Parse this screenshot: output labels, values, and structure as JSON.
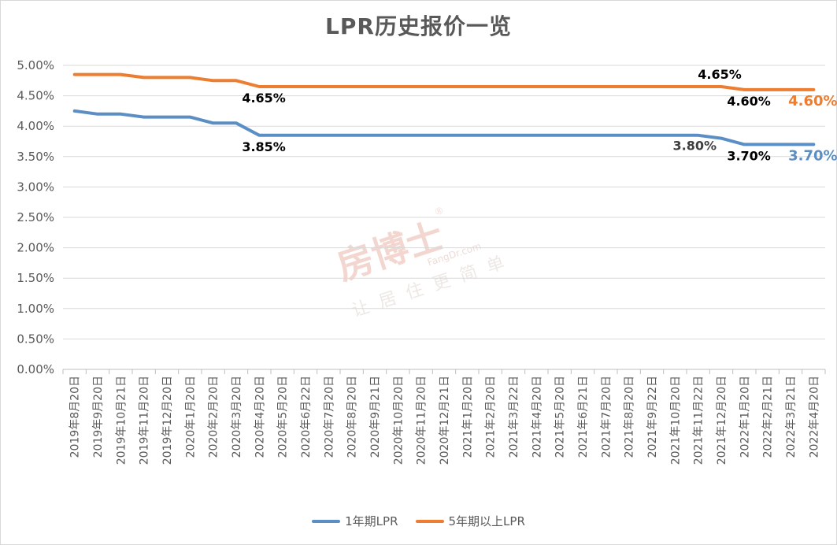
{
  "chart_data": {
    "type": "line",
    "title": "LPR历史报价一览",
    "x": [
      "2019年8月20日",
      "2019年9月20日",
      "2019年10月21日",
      "2019年11月20日",
      "2019年12月20日",
      "2020年1月20日",
      "2020年2月20日",
      "2020年3月20日",
      "2020年4月20日",
      "2020年5月20日",
      "2020年6月22日",
      "2020年7月20日",
      "2020年8月20日",
      "2020年9月21日",
      "2020年10月20日",
      "2020年11月20日",
      "2020年12月21日",
      "2021年1月20日",
      "2021年2月20日",
      "2021年3月22日",
      "2021年4月20日",
      "2021年5月20日",
      "2021年6月21日",
      "2021年7月20日",
      "2021年8月20日",
      "2021年9月22日",
      "2021年10月20日",
      "2021年11月22日",
      "2021年12月20日",
      "2022年1月20日",
      "2022年2月21日",
      "2022年3月21日",
      "2022年4月20日"
    ],
    "series": [
      {
        "name": "1年期LPR",
        "color": "#5b8ec4",
        "values": [
          4.25,
          4.2,
          4.2,
          4.15,
          4.15,
          4.15,
          4.05,
          4.05,
          3.85,
          3.85,
          3.85,
          3.85,
          3.85,
          3.85,
          3.85,
          3.85,
          3.85,
          3.85,
          3.85,
          3.85,
          3.85,
          3.85,
          3.85,
          3.85,
          3.85,
          3.85,
          3.85,
          3.85,
          3.8,
          3.7,
          3.7,
          3.7,
          3.7
        ]
      },
      {
        "name": "5年期以上LPR",
        "color": "#ed7d31",
        "values": [
          4.85,
          4.85,
          4.85,
          4.8,
          4.8,
          4.8,
          4.75,
          4.75,
          4.65,
          4.65,
          4.65,
          4.65,
          4.65,
          4.65,
          4.65,
          4.65,
          4.65,
          4.65,
          4.65,
          4.65,
          4.65,
          4.65,
          4.65,
          4.65,
          4.65,
          4.65,
          4.65,
          4.65,
          4.65,
          4.6,
          4.6,
          4.6,
          4.6
        ]
      }
    ],
    "ylim": [
      0,
      5
    ],
    "yticks": [
      "0.00%",
      "0.50%",
      "1.00%",
      "1.50%",
      "2.00%",
      "2.50%",
      "3.00%",
      "3.50%",
      "4.00%",
      "4.50%",
      "5.00%"
    ],
    "annotations": [
      {
        "text": "4.65%",
        "series": 1,
        "index": 8,
        "pos": "below",
        "color": "#000000"
      },
      {
        "text": "3.85%",
        "series": 0,
        "index": 8,
        "pos": "below",
        "color": "#000000"
      },
      {
        "text": "4.65%",
        "series": 1,
        "index": 28,
        "pos": "above",
        "color": "#000000"
      },
      {
        "text": "4.60%",
        "series": 1,
        "index": 29,
        "pos": "below",
        "color": "#000000"
      },
      {
        "text": "3.80%",
        "series": 0,
        "index": 28,
        "pos": "left",
        "color": "#404040"
      },
      {
        "text": "3.70%",
        "series": 0,
        "index": 29,
        "pos": "below",
        "color": "#000000"
      },
      {
        "text": "4.60%",
        "series": 1,
        "index": 32,
        "pos": "end",
        "color": "#ed7d31"
      },
      {
        "text": "3.70%",
        "series": 0,
        "index": 32,
        "pos": "end",
        "color": "#5b8ec4"
      }
    ],
    "grid": true,
    "legend": "bottom"
  },
  "watermark": {
    "brand": "房博士",
    "registered": "®",
    "url": "FangDr.com",
    "slogan": "让居住更简单"
  }
}
